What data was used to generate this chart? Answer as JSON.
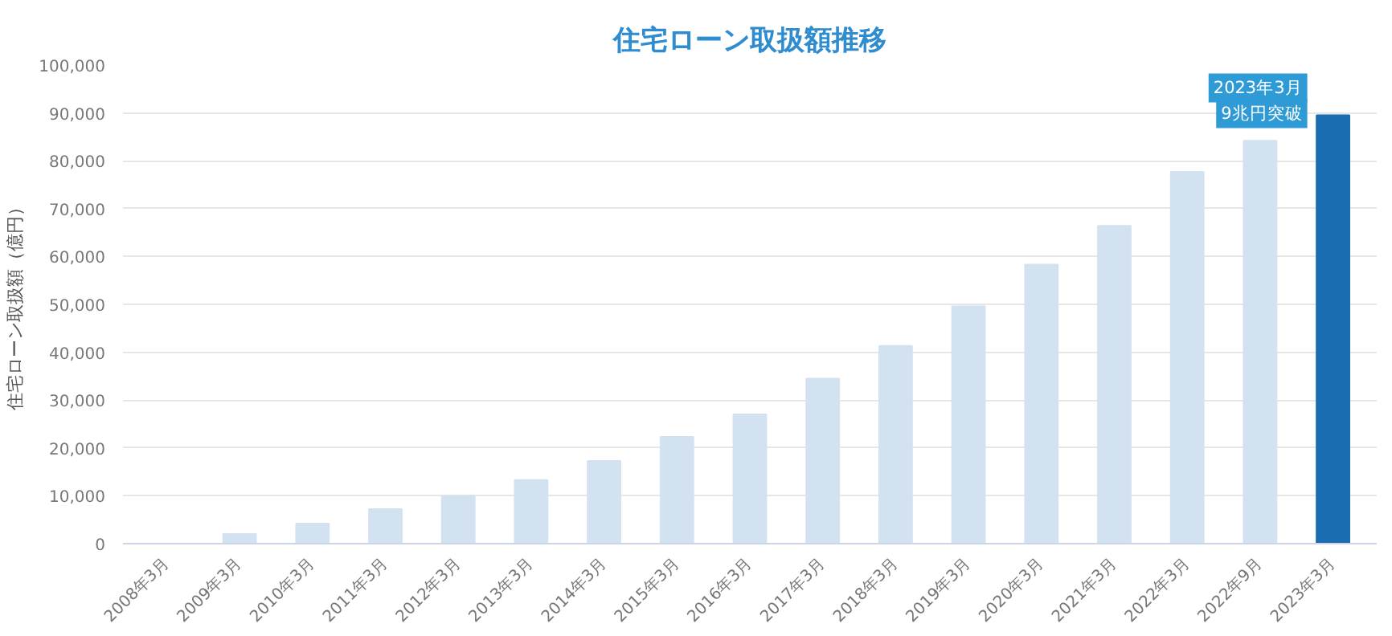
{
  "chart_data": {
    "type": "bar",
    "title": "住宅ローン取扱額推移",
    "ylabel": "住宅ローン取扱額（億円）",
    "categories": [
      "2008年3月",
      "2009年3月",
      "2010年3月",
      "2011年3月",
      "2012年3月",
      "2013年3月",
      "2014年3月",
      "2015年3月",
      "2016年3月",
      "2017年3月",
      "2018年3月",
      "2019年3月",
      "2020年3月",
      "2021年3月",
      "2022年3月",
      "2022年9月",
      "2023年3月"
    ],
    "values": [
      0,
      2000,
      4200,
      7200,
      10000,
      13300,
      17300,
      22300,
      27000,
      34500,
      41300,
      49600,
      58300,
      66400,
      77700,
      84200,
      89500
    ],
    "colors": [
      "#d3e2f0",
      "#d3e2f0",
      "#d3e2f0",
      "#d3e2f0",
      "#d3e2f0",
      "#d3e2f0",
      "#d3e2f0",
      "#d3e2f0",
      "#d3e2f0",
      "#d3e2f0",
      "#d3e2f0",
      "#d3e2f0",
      "#d3e2f0",
      "#d3e2f0",
      "#d3e2f0",
      "#d3e2f0",
      "#1a6db0"
    ],
    "ylim": [
      0,
      100000
    ],
    "yticks": [
      0,
      {
        "value": 10000,
        "label": "10,000"
      },
      {
        "value": 20000,
        "label": "20,000"
      },
      {
        "value": 30000,
        "label": "30,000"
      },
      {
        "value": 40000,
        "label": "40,000"
      },
      {
        "value": 50000,
        "label": "50,000"
      },
      {
        "value": 60000,
        "label": "60,000"
      },
      {
        "value": 70000,
        "label": "70,000"
      },
      {
        "value": 80000,
        "label": "80,000"
      },
      {
        "value": 90000,
        "label": "90,000"
      },
      {
        "value": 100000,
        "label": "100,000"
      }
    ],
    "grid": "y",
    "annotations": [
      {
        "text": "2023年3月\n9兆円突破",
        "x": "2023年3月",
        "y": 89500
      }
    ]
  }
}
